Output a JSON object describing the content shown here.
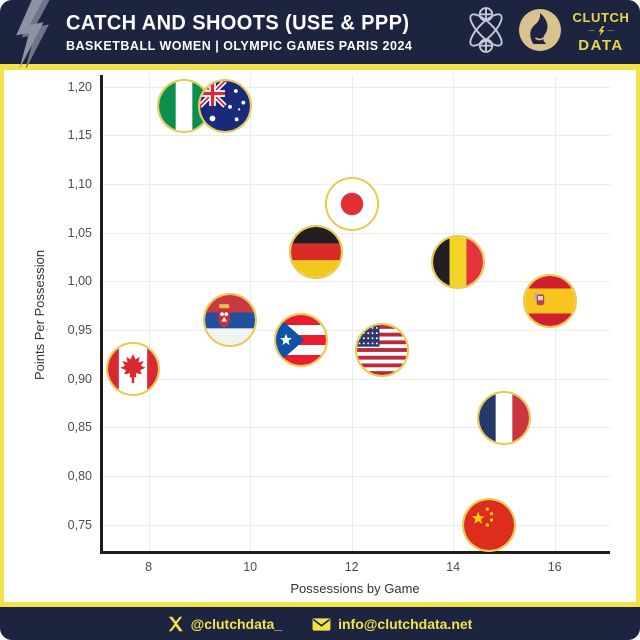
{
  "header": {
    "title": "CATCH AND SHOOTS (USE & PPP)",
    "subtitle": "BASKETBALL WOMEN | OLYMPIC GAMES PARIS 2024",
    "brand": {
      "line1": "CLUTCH",
      "line2": "DATA",
      "est_left": "—",
      "est_right": "—"
    }
  },
  "footer": {
    "twitter": "@clutchdata_",
    "email": "info@clutchdata.net"
  },
  "colors": {
    "navy": "#1d2440",
    "yellow": "#f2e24b",
    "gold_ring": "#e9c94e",
    "grid": "#ececec",
    "axis": "#1c1c1c",
    "tick_text": "#4d4d4d"
  },
  "chart_data": {
    "type": "scatter",
    "title": "Catch and Shoots (Use & PPP)",
    "subtitle": "Basketball Women | Olympic Games Paris 2024",
    "xlabel": "Possessions by Game",
    "ylabel": "Points Per Possession",
    "xlim": [
      7.1,
      17.15
    ],
    "ylim": [
      0.72,
      1.212
    ],
    "grid": true,
    "marker": "circular country flag with gold ring",
    "x_ticks": [
      {
        "label": "8",
        "value": 8
      },
      {
        "label": "10",
        "value": 10
      },
      {
        "label": "12",
        "value": 12
      },
      {
        "label": "14",
        "value": 14
      },
      {
        "label": "16",
        "value": 16
      }
    ],
    "y_ticks": [
      {
        "label": "1,20",
        "value": 1.2
      },
      {
        "label": "1,15",
        "value": 1.15
      },
      {
        "label": "1,10",
        "value": 1.1
      },
      {
        "label": "1,05",
        "value": 1.05
      },
      {
        "label": "1,00",
        "value": 1.0
      },
      {
        "label": "0,95",
        "value": 0.95
      },
      {
        "label": "0,90",
        "value": 0.9
      },
      {
        "label": "0,85",
        "value": 0.85
      },
      {
        "label": "0,80",
        "value": 0.8
      },
      {
        "label": "0,75",
        "value": 0.75
      }
    ],
    "points": [
      {
        "team": "Nigeria",
        "flag": "nigeria",
        "x": 8.7,
        "y": 1.18
      },
      {
        "team": "Australia",
        "flag": "australia",
        "x": 9.5,
        "y": 1.18
      },
      {
        "team": "Japan",
        "flag": "japan",
        "x": 12.0,
        "y": 1.08
      },
      {
        "team": "Germany",
        "flag": "germany",
        "x": 11.3,
        "y": 1.03
      },
      {
        "team": "Belgium",
        "flag": "belgium",
        "x": 14.1,
        "y": 1.02
      },
      {
        "team": "Spain",
        "flag": "spain",
        "x": 15.9,
        "y": 0.98
      },
      {
        "team": "Serbia",
        "flag": "serbia",
        "x": 9.6,
        "y": 0.96
      },
      {
        "team": "Puerto Rico",
        "flag": "puertorico",
        "x": 11.0,
        "y": 0.94
      },
      {
        "team": "USA",
        "flag": "usa",
        "x": 12.6,
        "y": 0.93
      },
      {
        "team": "Canada",
        "flag": "canada",
        "x": 7.7,
        "y": 0.91
      },
      {
        "team": "France",
        "flag": "france",
        "x": 15.0,
        "y": 0.86
      },
      {
        "team": "China",
        "flag": "china",
        "x": 14.7,
        "y": 0.75
      }
    ]
  }
}
